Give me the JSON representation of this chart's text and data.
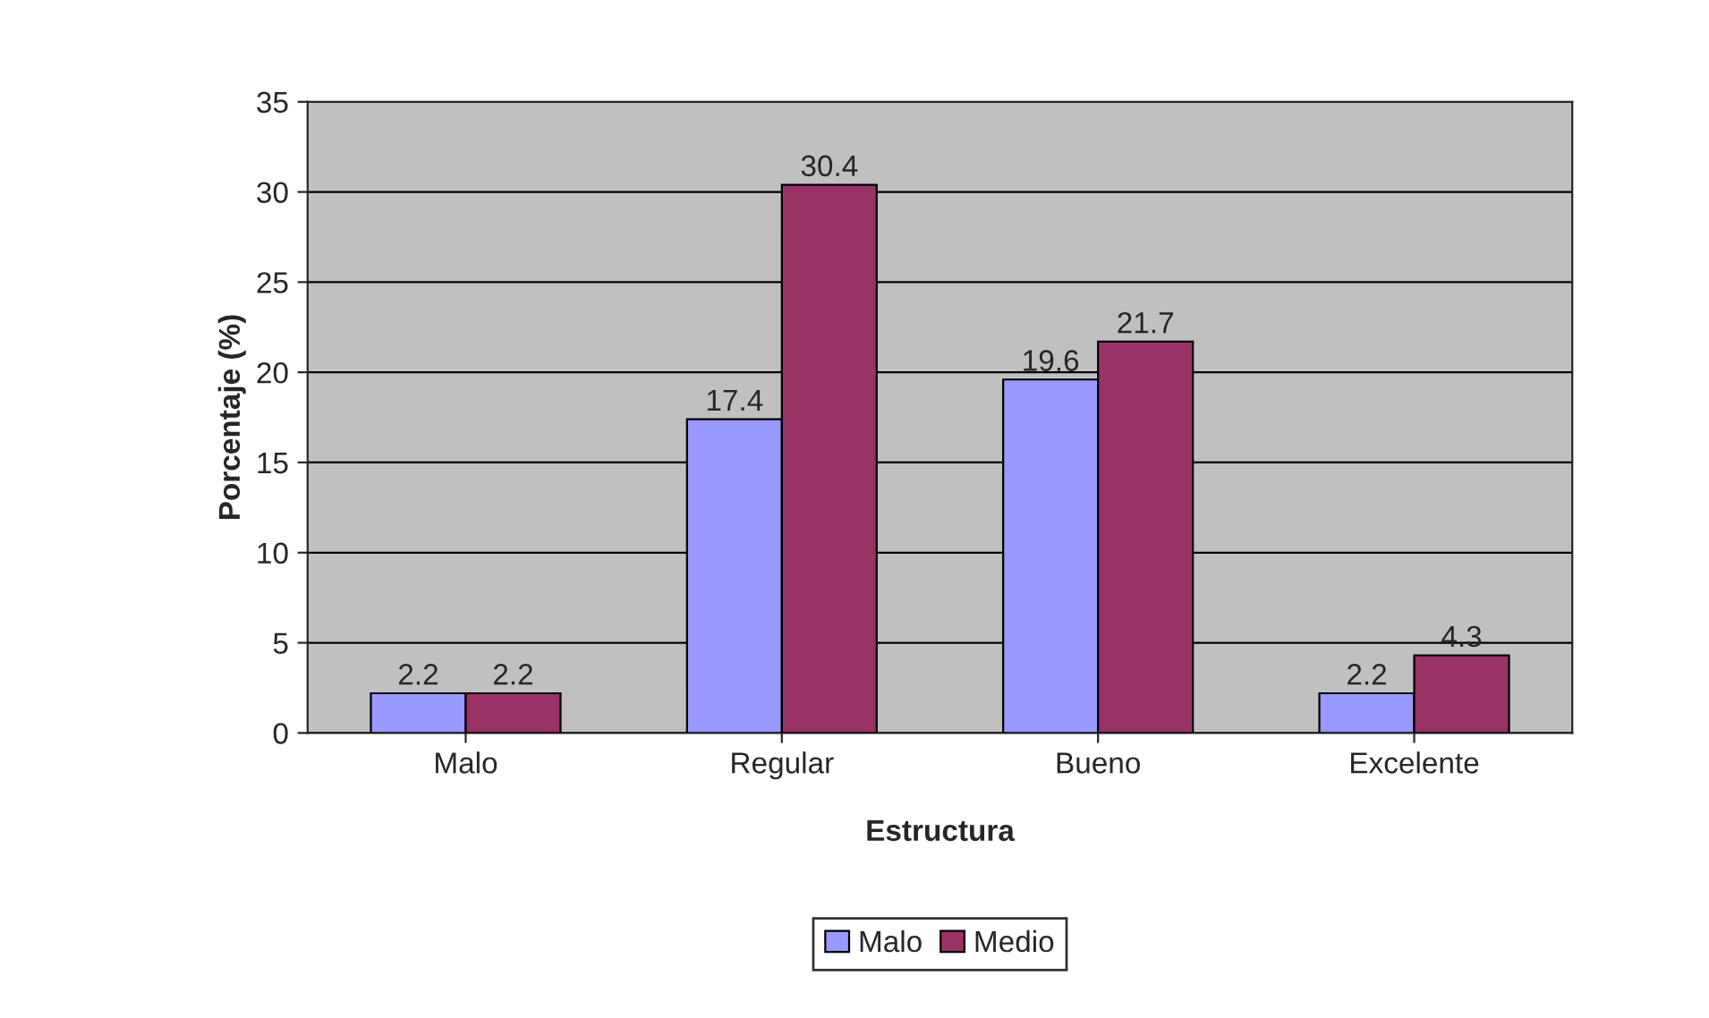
{
  "chart_data": {
    "type": "bar",
    "xlabel": "Estructura",
    "ylabel": "Porcentaje (%)",
    "categories": [
      "Malo",
      "Regular",
      "Bueno",
      "Excelente"
    ],
    "series": [
      {
        "name": "Malo",
        "color": "#9999ff",
        "values": [
          2.2,
          17.4,
          19.6,
          2.2
        ]
      },
      {
        "name": "Medio",
        "color": "#993366",
        "values": [
          2.2,
          30.4,
          21.7,
          4.3
        ]
      }
    ],
    "ylim": [
      0,
      35
    ],
    "yticks": [
      0,
      5,
      10,
      15,
      20,
      25,
      30,
      35
    ],
    "grid": "y",
    "legend": "bottom",
    "data_labels": true
  }
}
